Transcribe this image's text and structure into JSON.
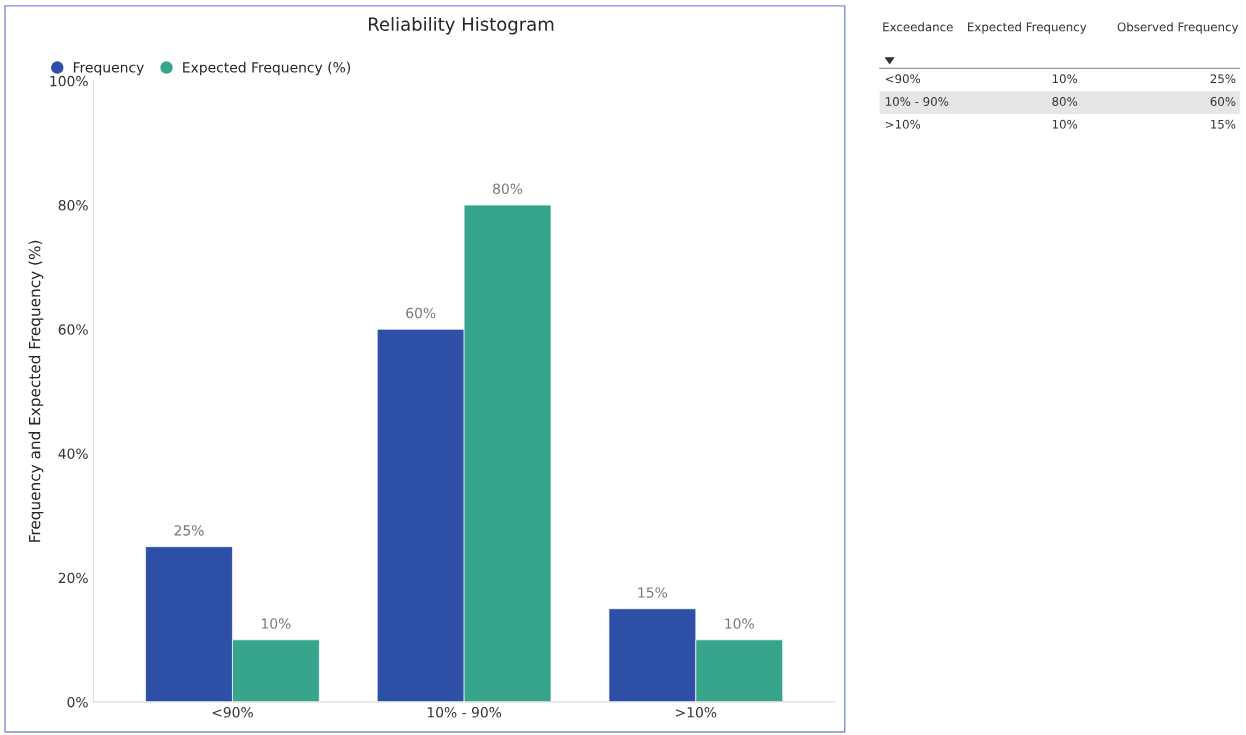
{
  "chart_data": [
    {
      "type": "bar",
      "title": "Reliability Histogram",
      "ylabel": "Frequency and Expected Frequency (%)",
      "categories": [
        "<90%",
        "10% - 90%",
        ">10%"
      ],
      "series": [
        {
          "name": "Frequency",
          "color": "#2e4fa6",
          "values": [
            25,
            60,
            15
          ],
          "value_labels": [
            "25%",
            "60%",
            "15%"
          ]
        },
        {
          "name": "Expected Frequency (%)",
          "color": "#37a58c",
          "values": [
            10,
            80,
            10
          ],
          "value_labels": [
            "10%",
            "80%",
            "10%"
          ]
        }
      ],
      "ylim": [
        0,
        100
      ],
      "yticks": [
        {
          "value": 0,
          "label": "0%"
        },
        {
          "value": 20,
          "label": "20%"
        },
        {
          "value": 40,
          "label": "40%"
        },
        {
          "value": 60,
          "label": "60%"
        },
        {
          "value": 80,
          "label": "80%"
        },
        {
          "value": 100,
          "label": "100%"
        }
      ],
      "grid": false,
      "legend": "top left"
    },
    {
      "type": "other",
      "annotations": [
        "Exceedance",
        "Expected Frequency",
        "Observed Frequency",
        "<90%",
        "10%",
        "25%",
        "10% - 90%",
        "80%",
        "60%",
        ">10%",
        "10%",
        "15%"
      ]
    }
  ]
}
